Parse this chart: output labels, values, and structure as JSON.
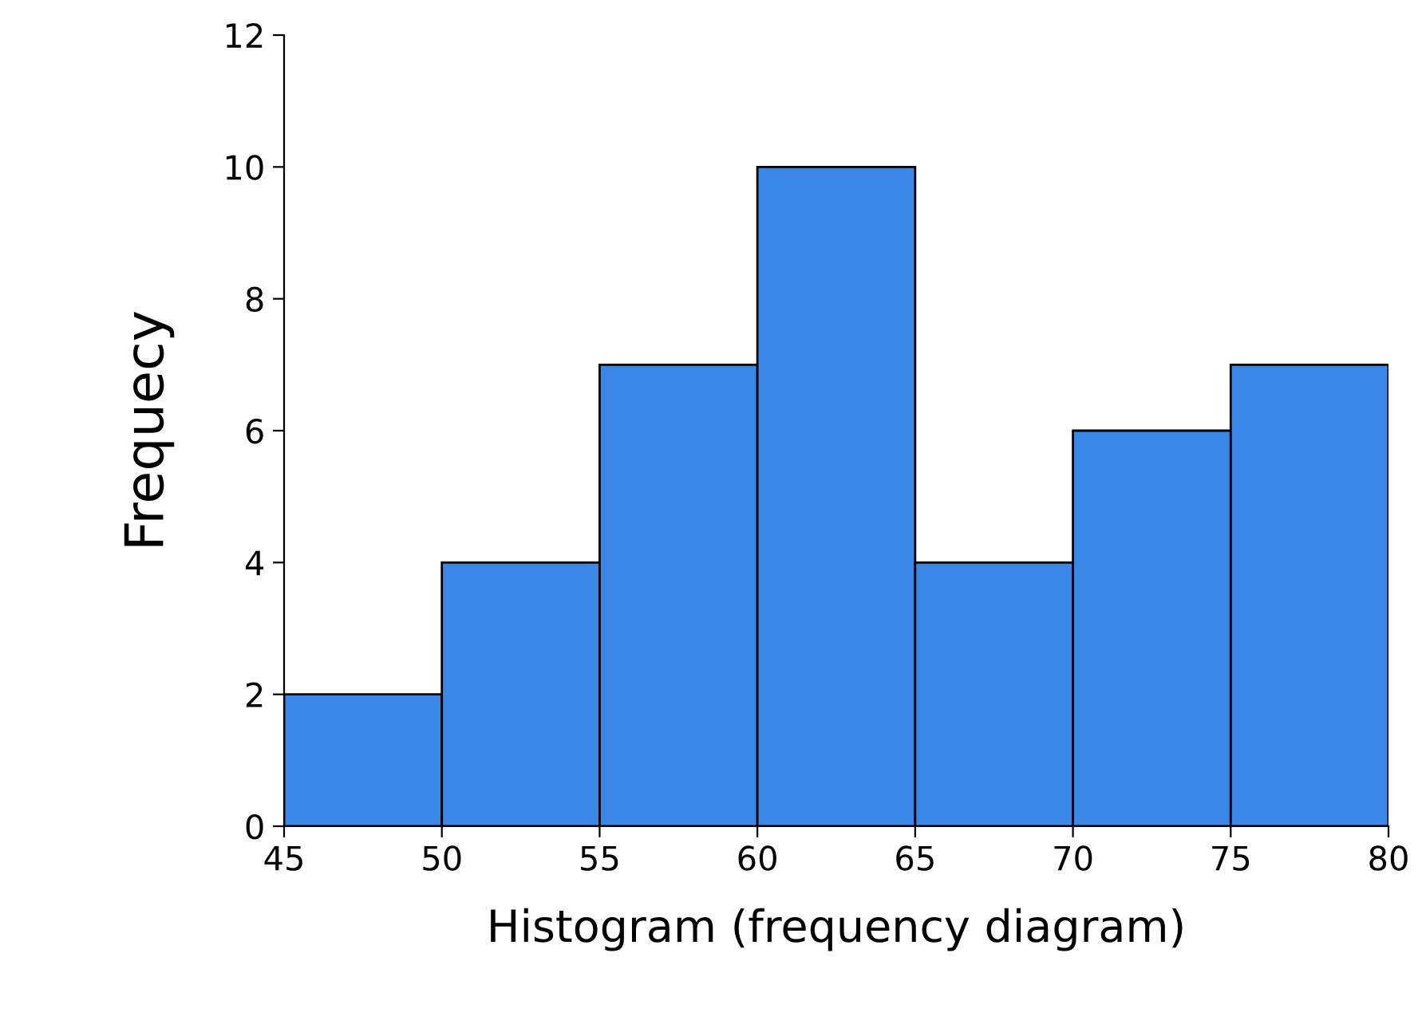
{
  "chart_data": {
    "type": "histogram",
    "xlabel": "Histogram (frequency diagram)",
    "ylabel": "Frequecy",
    "bins": [
      45,
      50,
      55,
      60,
      65,
      70,
      75,
      80
    ],
    "values": [
      2,
      4,
      7,
      10,
      4,
      6,
      7
    ],
    "color": "#3b87e8",
    "xlim": [
      45,
      80
    ],
    "ylim": [
      0,
      12
    ],
    "xticks": [
      45,
      50,
      55,
      60,
      65,
      70,
      75,
      80
    ],
    "yticks": [
      0,
      2,
      4,
      6,
      8,
      10,
      12
    ],
    "grid": false,
    "legend": false
  }
}
